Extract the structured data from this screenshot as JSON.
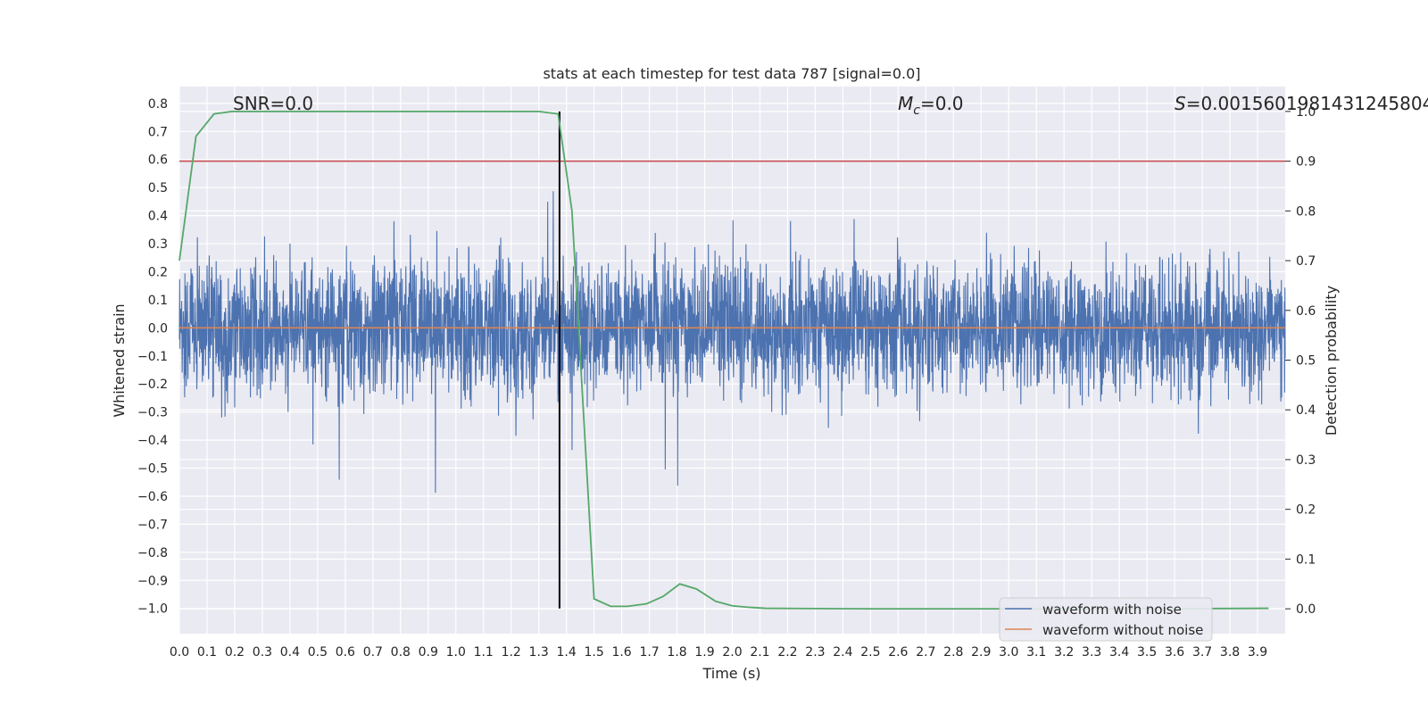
{
  "chart_data": {
    "type": "line",
    "title": "stats at each timestep for test data 787 [signal=0.0]",
    "xlabel": "Time (s)",
    "ylabel": "Whitened strain",
    "y2label": "Detection probability",
    "xlim": [
      0.0,
      4.0
    ],
    "ylim": [
      -1.09,
      0.86
    ],
    "y2lim": [
      -0.05,
      1.05
    ],
    "grid": true,
    "x_ticks": [
      "0.0",
      "0.1",
      "0.2",
      "0.3",
      "0.4",
      "0.5",
      "0.6",
      "0.7",
      "0.8",
      "0.9",
      "1.0",
      "1.1",
      "1.2",
      "1.3",
      "1.4",
      "1.5",
      "1.6",
      "1.7",
      "1.8",
      "1.9",
      "2.0",
      "2.1",
      "2.2",
      "2.3",
      "2.4",
      "2.5",
      "2.6",
      "2.7",
      "2.8",
      "2.9",
      "3.0",
      "3.1",
      "3.2",
      "3.3",
      "3.4",
      "3.5",
      "3.6",
      "3.7",
      "3.8",
      "3.9"
    ],
    "y_ticks": [
      "0.8",
      "0.7",
      "0.6",
      "0.5",
      "0.4",
      "0.3",
      "0.2",
      "0.1",
      "0.0",
      "−0.1",
      "−0.2",
      "−0.3",
      "−0.4",
      "−0.5",
      "−0.6",
      "−0.7",
      "−0.8",
      "−0.9",
      "−1.0"
    ],
    "y2_ticks": [
      "1.0",
      "0.9",
      "0.8",
      "0.7",
      "0.6",
      "0.5",
      "0.4",
      "0.3",
      "0.2",
      "0.1",
      "0.0"
    ],
    "annotations": {
      "snr": "SNR=0.0",
      "mc_symbol": "M",
      "mc_sub": "c",
      "mc_value": "=0.0",
      "s_symbol": "S",
      "s_value": "=0.0015601981431245804"
    },
    "threshold": {
      "y2": 0.9,
      "color": "#c44e52"
    },
    "marker_line": {
      "x": 1.375,
      "color": "#000000"
    },
    "series": [
      {
        "name": "waveform with noise",
        "color": "#4c72b0",
        "description": "noise"
      },
      {
        "name": "waveform without noise",
        "color": "#dd8452",
        "values_constant": 0.0
      },
      {
        "color": "#55a868",
        "axis": "y2",
        "x": [
          0.0,
          0.06,
          0.125,
          0.19,
          0.25,
          0.5,
          1.0,
          1.3,
          1.37,
          1.42,
          1.5,
          1.56,
          1.62,
          1.69,
          1.75,
          1.81,
          1.87,
          1.94,
          2.0,
          2.06,
          2.12,
          2.5,
          3.0,
          3.5,
          3.94
        ],
        "values": [
          0.7,
          0.95,
          0.995,
          1.0,
          1.0,
          1.0,
          1.0,
          1.0,
          0.995,
          0.8,
          0.02,
          0.005,
          0.005,
          0.01,
          0.025,
          0.05,
          0.04,
          0.015,
          0.006,
          0.003,
          0.001,
          0.0,
          0.0,
          0.0,
          0.001
        ]
      }
    ],
    "legend": {
      "placement": "lower-right",
      "entries": [
        "waveform with noise",
        "waveform without noise"
      ]
    }
  }
}
